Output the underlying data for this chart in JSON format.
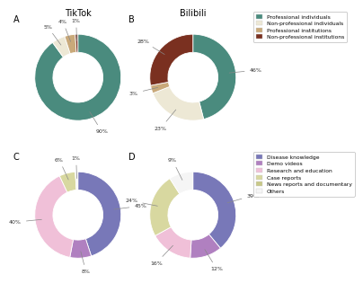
{
  "title_A": "TikTok",
  "title_B": "Bilibili",
  "pie_A_values": [
    90,
    5,
    4,
    1
  ],
  "pie_A_labels": [
    "90%",
    "5%",
    "4%",
    "1%"
  ],
  "pie_A_colors": [
    "#4a8b7e",
    "#ede8d5",
    "#c9a97a",
    "#7a3020"
  ],
  "pie_B_values": [
    46,
    23,
    3,
    28
  ],
  "pie_B_labels": [
    "46%",
    "23%",
    "3%",
    "28%"
  ],
  "pie_B_colors": [
    "#4a8b7e",
    "#ede8d5",
    "#c9a97a",
    "#7a3020"
  ],
  "legend_AB": [
    "Professional individuals",
    "Non-professional individuals",
    "Professional institutions",
    "Non-professional institutions"
  ],
  "legend_AB_colors": [
    "#4a8b7e",
    "#ede8d5",
    "#c9a97a",
    "#7a3020"
  ],
  "pie_C_values": [
    45,
    8,
    40,
    6,
    1
  ],
  "pie_C_labels": [
    "45%",
    "8%",
    "40%",
    "6%",
    "1%"
  ],
  "pie_C_colors": [
    "#7878b8",
    "#b080c0",
    "#f0c0d8",
    "#d8d8a0",
    "#f5f5f5"
  ],
  "pie_D_values": [
    39,
    12,
    16,
    24,
    9
  ],
  "pie_D_labels": [
    "39%",
    "12%",
    "16%",
    "24%",
    "9%"
  ],
  "pie_D_colors": [
    "#7878b8",
    "#b080c0",
    "#f0c0d8",
    "#d8d8a0",
    "#f5f5f5"
  ],
  "legend_CD": [
    "Disease knowledge",
    "Demo videos",
    "Research and education",
    "Case reports",
    "News reports and documentary",
    "Others"
  ],
  "legend_CD_colors": [
    "#7878b8",
    "#b080c0",
    "#f0c0d8",
    "#d8d8a0",
    "#c8c888",
    "#f5f5f5"
  ],
  "bg_color": "#ffffff"
}
